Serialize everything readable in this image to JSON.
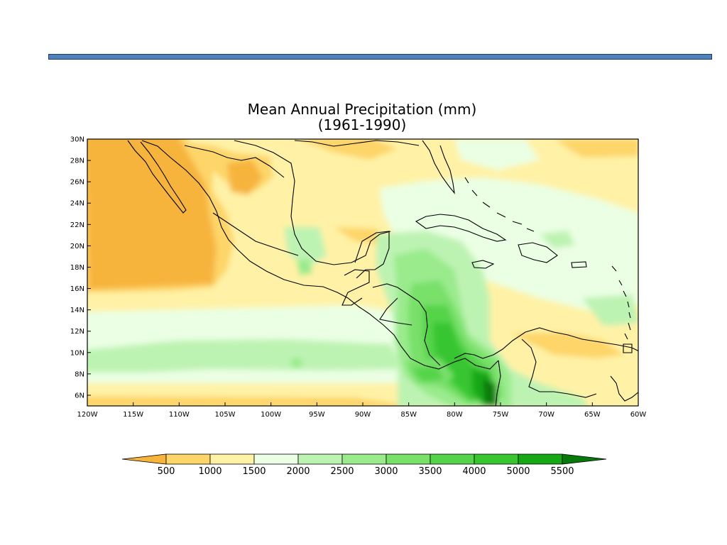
{
  "title": {
    "line1": "Mean Annual Precipitation (mm)",
    "line2": "(1961-1990)"
  },
  "map": {
    "lat_labels": [
      "30N",
      "28N",
      "26N",
      "24N",
      "22N",
      "20N",
      "18N",
      "16N",
      "14N",
      "12N",
      "10N",
      "8N",
      "6N"
    ],
    "lon_labels": [
      "120W",
      "115W",
      "110W",
      "105W",
      "100W",
      "95W",
      "90W",
      "85W",
      "80W",
      "75W",
      "70W",
      "65W",
      "60W"
    ],
    "lat_range": [
      5,
      30
    ],
    "lon_range": [
      -120,
      -60
    ]
  },
  "colorbar": {
    "labels": [
      "500",
      "1000",
      "1500",
      "2000",
      "2500",
      "3000",
      "3500",
      "4000",
      "5000",
      "5500"
    ],
    "colors": [
      "#f7b43c",
      "#fdd569",
      "#fff2a6",
      "#eaffe3",
      "#bdf3b2",
      "#9aeb8c",
      "#79e06a",
      "#55d44a",
      "#38c530",
      "#17a816",
      "#087a0b"
    ]
  }
}
